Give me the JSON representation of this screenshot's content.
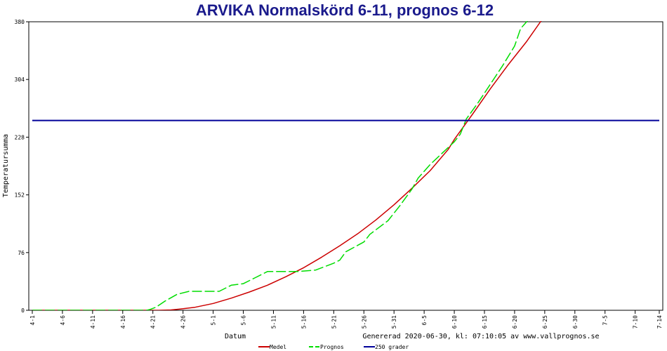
{
  "chart_data": {
    "type": "line",
    "title": "ARVIKA Normalskörd 6-11, prognos 6-12",
    "xlabel": "Datum",
    "ylabel": "Temperatursumma",
    "footer": "Genererad 2020-06-30, kl: 07:10:05 av www.vallprognos.se",
    "ylim": [
      0,
      380
    ],
    "yticks": [
      0,
      76,
      152,
      228,
      304,
      380
    ],
    "xlim": [
      0,
      104
    ],
    "xticks": [
      {
        "label": "4-1",
        "day": 0
      },
      {
        "label": "4-6",
        "day": 5
      },
      {
        "label": "4-11",
        "day": 10
      },
      {
        "label": "4-16",
        "day": 15
      },
      {
        "label": "4-21",
        "day": 20
      },
      {
        "label": "4-26",
        "day": 25
      },
      {
        "label": "5-1",
        "day": 30
      },
      {
        "label": "5-6",
        "day": 35
      },
      {
        "label": "5-11",
        "day": 40
      },
      {
        "label": "5-16",
        "day": 45
      },
      {
        "label": "5-21",
        "day": 50
      },
      {
        "label": "5-26",
        "day": 55
      },
      {
        "label": "5-31",
        "day": 60
      },
      {
        "label": "6-5",
        "day": 65
      },
      {
        "label": "6-10",
        "day": 70
      },
      {
        "label": "6-15",
        "day": 75
      },
      {
        "label": "6-20",
        "day": 80
      },
      {
        "label": "6-25",
        "day": 85
      },
      {
        "label": "6-30",
        "day": 90
      },
      {
        "label": "7-5",
        "day": 95
      },
      {
        "label": "7-10",
        "day": 100
      },
      {
        "label": "7-14",
        "day": 104
      }
    ],
    "series": [
      {
        "name": "Medel",
        "color": "#cc0000",
        "dashed": false,
        "points": [
          [
            0,
            0
          ],
          [
            5,
            0
          ],
          [
            10,
            0
          ],
          [
            15,
            0
          ],
          [
            19,
            0
          ],
          [
            21,
            0
          ],
          [
            23,
            0.5
          ],
          [
            25,
            2
          ],
          [
            27,
            4
          ],
          [
            30,
            9
          ],
          [
            33,
            16
          ],
          [
            36,
            24
          ],
          [
            39,
            33
          ],
          [
            42,
            44
          ],
          [
            45,
            56
          ],
          [
            48,
            70
          ],
          [
            51,
            85
          ],
          [
            54,
            101
          ],
          [
            57,
            119
          ],
          [
            60,
            139
          ],
          [
            63,
            161
          ],
          [
            66,
            184
          ],
          [
            69,
            212
          ],
          [
            70,
            225
          ],
          [
            73,
            258
          ],
          [
            76,
            292
          ],
          [
            79,
            324
          ],
          [
            82,
            354
          ],
          [
            85,
            388
          ],
          [
            87,
            412
          ]
        ]
      },
      {
        "name": "Prognos",
        "color": "#00dd00",
        "dashed": true,
        "points": [
          [
            0,
            0
          ],
          [
            5,
            0
          ],
          [
            10,
            0
          ],
          [
            15,
            0
          ],
          [
            19,
            0
          ],
          [
            19.5,
            1
          ],
          [
            20.5,
            4
          ],
          [
            22,
            12
          ],
          [
            24,
            21
          ],
          [
            26,
            25
          ],
          [
            28,
            25
          ],
          [
            31,
            25
          ],
          [
            33,
            33
          ],
          [
            35,
            35
          ],
          [
            37,
            43
          ],
          [
            39,
            51
          ],
          [
            41,
            51
          ],
          [
            44,
            51
          ],
          [
            47,
            53
          ],
          [
            50,
            62
          ],
          [
            51,
            66
          ],
          [
            52,
            77
          ],
          [
            55,
            90
          ],
          [
            56,
            100
          ],
          [
            59,
            118
          ],
          [
            61,
            138
          ],
          [
            63,
            160
          ],
          [
            64,
            174
          ],
          [
            66,
            192
          ],
          [
            68,
            207
          ],
          [
            70,
            222
          ],
          [
            71,
            232
          ],
          [
            72,
            252
          ],
          [
            74,
            274
          ],
          [
            76,
            298
          ],
          [
            78,
            322
          ],
          [
            80,
            348
          ],
          [
            81,
            371
          ],
          [
            82,
            380
          ],
          [
            84,
            400
          ],
          [
            85,
            418
          ]
        ]
      },
      {
        "name": "250 grader",
        "color": "#000099",
        "dashed": false,
        "points": [
          [
            0,
            250
          ],
          [
            104,
            250
          ]
        ]
      }
    ],
    "legend": [
      "Medel",
      "Prognos",
      "250 grader"
    ],
    "legend_position": "bottom-center",
    "grid": false
  }
}
